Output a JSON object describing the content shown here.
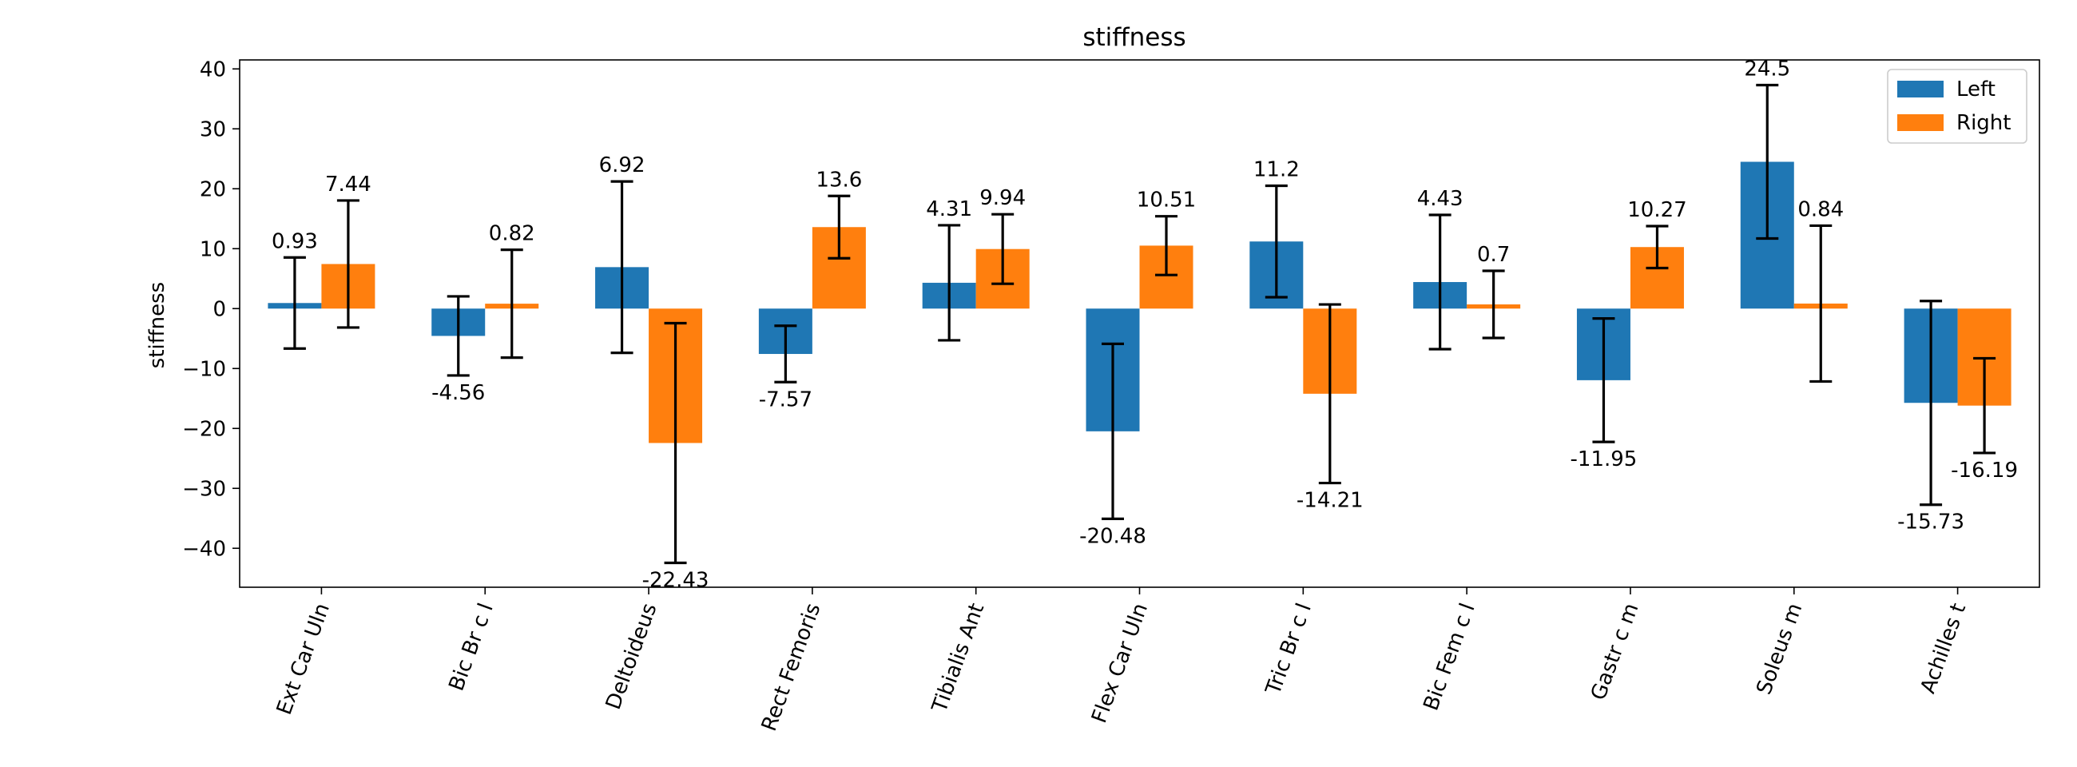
{
  "chart_data": {
    "type": "bar",
    "title": "stiffness",
    "xlabel": "",
    "ylabel": "stiffness",
    "ylim": [
      -46.5,
      41.5
    ],
    "yticks": [
      -40,
      -30,
      -20,
      -10,
      0,
      10,
      20,
      30,
      40
    ],
    "grid": false,
    "legend_position": "top-right",
    "categories": [
      "Ext Car Uln",
      "Bic Br c l",
      "Deltoideus",
      "Rect Femoris",
      "Tibialis Ant",
      "Flex Car Uln",
      "Tric Br c l",
      "Bic Fem c l",
      "Gastr c m",
      "Soleus m",
      "Achilles t"
    ],
    "series": [
      {
        "name": "Left",
        "color": "#1f77b4",
        "values": [
          0.93,
          -4.56,
          6.92,
          -7.57,
          4.31,
          -20.48,
          11.2,
          4.43,
          -11.95,
          24.5,
          -15.73
        ],
        "labels": [
          "0.93",
          "-4.56",
          "6.92",
          "-7.57",
          "4.31",
          "-20.48",
          "11.2",
          "4.43",
          "-11.95",
          "24.5",
          "-15.73"
        ],
        "errors": [
          7.6,
          6.6,
          14.3,
          4.7,
          9.6,
          14.6,
          9.3,
          11.2,
          10.3,
          12.8,
          17.0
        ]
      },
      {
        "name": "Right",
        "color": "#ff7f0e",
        "values": [
          7.44,
          0.82,
          -22.43,
          13.6,
          9.94,
          10.51,
          -14.21,
          0.7,
          10.27,
          0.84,
          -16.19
        ],
        "labels": [
          "7.44",
          "0.82",
          "-22.43",
          "13.6",
          "9.94",
          "10.51",
          "-14.21",
          "0.7",
          "10.27",
          "0.84",
          "-16.19"
        ],
        "errors": [
          10.6,
          9.0,
          20.0,
          5.2,
          5.8,
          4.9,
          14.9,
          5.6,
          3.5,
          13.0,
          7.9
        ]
      }
    ]
  }
}
